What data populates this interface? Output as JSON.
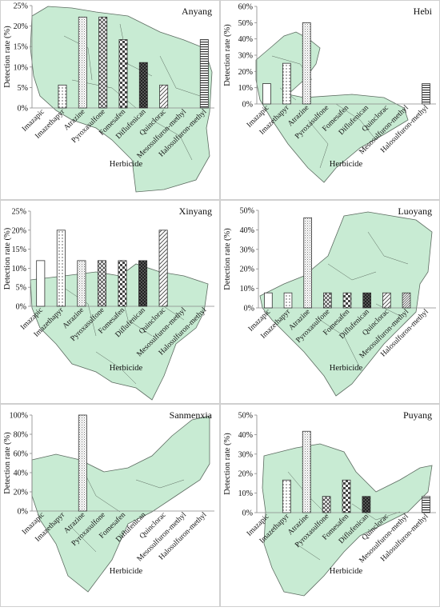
{
  "categories": [
    "Imazapic",
    "Imazethapyr",
    "Atrazine",
    "Pyroxasulfone",
    "Fomesafen",
    "Diflufenican",
    "Quinclorac",
    "Mesosulfuron-methyl",
    "Halosulfuron-methyl"
  ],
  "xlabel": "Herbicide",
  "ylabel": "Detection rate (%)",
  "colors": {
    "map_fill": "#c8ebd3",
    "map_stroke": "#5c6b60",
    "bar_stroke": "#333333",
    "axis": "#888888"
  },
  "patterns": [
    "none",
    "dots",
    "grid-fine",
    "diag-cross",
    "checker",
    "checker-dense",
    "diag-hatch",
    "diag-hatch-dense",
    "horizontal"
  ],
  "chart_data": [
    {
      "type": "bar",
      "title": "Anyang",
      "categories": [
        "Imazapic",
        "Imazethapyr",
        "Atrazine",
        "Pyroxasulfone",
        "Fomesafen",
        "Diflufenican",
        "Quinclorac",
        "Mesosulfuron-methyl",
        "Halosulfuron-methyl"
      ],
      "values": [
        0,
        5.6,
        22.2,
        22.2,
        16.7,
        11.1,
        5.6,
        0,
        16.7
      ],
      "xlabel": "Herbicide",
      "ylabel": "Detection rate (%)",
      "ylim": [
        0,
        25
      ],
      "yticks": [
        "0%",
        "5%",
        "10%",
        "15%",
        "20%",
        "25%"
      ]
    },
    {
      "type": "bar",
      "title": "Hebi",
      "categories": [
        "Imazapic",
        "Imazethapyr",
        "Atrazine",
        "Pyroxasulfone",
        "Fomesafen",
        "Diflufenican",
        "Quinclorac",
        "Mesosulfuron-methyl",
        "Halosulfuron-methyl"
      ],
      "values": [
        12.5,
        25,
        50,
        0,
        0,
        0,
        0,
        0,
        12.5
      ],
      "xlabel": "Herbicide",
      "ylabel": "Detection rate (%)",
      "ylim": [
        0,
        60
      ],
      "yticks": [
        "0%",
        "10%",
        "20%",
        "30%",
        "40%",
        "50%",
        "60%"
      ]
    },
    {
      "type": "bar",
      "title": "Xinyang",
      "categories": [
        "Imazapic",
        "Imazethapyr",
        "Atrazine",
        "Pyroxasulfone",
        "Fomesafen",
        "Diflufenican",
        "Quinclorac",
        "Mesosulfuron-methyl",
        "Halosulfuron-methyl"
      ],
      "values": [
        12,
        20,
        12,
        12,
        12,
        12,
        20,
        0,
        0
      ],
      "xlabel": "Herbicide",
      "ylabel": "Detection rate (%)",
      "ylim": [
        0,
        25
      ],
      "yticks": [
        "0%",
        "5%",
        "10%",
        "15%",
        "20%",
        "25%"
      ]
    },
    {
      "type": "bar",
      "title": "Luoyang",
      "categories": [
        "Imazapic",
        "Imazethapyr",
        "Atrazine",
        "Pyroxasulfone",
        "Fomesafen",
        "Diflufenican",
        "Quinclorac",
        "Mesosulfuron-methyl",
        "Halosulfuron-methyl"
      ],
      "values": [
        7.7,
        7.7,
        46.2,
        7.7,
        7.7,
        7.7,
        7.7,
        7.7,
        0
      ],
      "xlabel": "Herbicide",
      "ylabel": "Detection rate (%)",
      "ylim": [
        0,
        50
      ],
      "yticks": [
        "0%",
        "10%",
        "20%",
        "30%",
        "40%",
        "50%"
      ]
    },
    {
      "type": "bar",
      "title": "Sanmenxia",
      "categories": [
        "Imazapic",
        "Imazethapyr",
        "Atrazine",
        "Pyroxasulfone",
        "Fomesafen",
        "Diflufenican",
        "Quinclorac",
        "Mesosulfuron-methyl",
        "Halosulfuron-methyl"
      ],
      "values": [
        0,
        0,
        100,
        0,
        0,
        0,
        0,
        0,
        0
      ],
      "xlabel": "Herbicide",
      "ylabel": "Detection rate (%)",
      "ylim": [
        0,
        100
      ],
      "yticks": [
        "0%",
        "20%",
        "40%",
        "60%",
        "80%",
        "100%"
      ]
    },
    {
      "type": "bar",
      "title": "Puyang",
      "categories": [
        "Imazapic",
        "Imazethapyr",
        "Atrazine",
        "Pyroxasulfone",
        "Fomesafen",
        "Diflufenican",
        "Quinclorac",
        "Mesosulfuron-methyl",
        "Halosulfuron-methyl"
      ],
      "values": [
        0,
        16.7,
        41.7,
        8.3,
        16.7,
        8.3,
        0,
        0,
        8.3
      ],
      "xlabel": "Herbicide",
      "ylabel": "Detection rate (%)",
      "ylim": [
        0,
        50
      ],
      "yticks": [
        "0%",
        "10%",
        "20%",
        "30%",
        "40%",
        "50%"
      ]
    }
  ]
}
